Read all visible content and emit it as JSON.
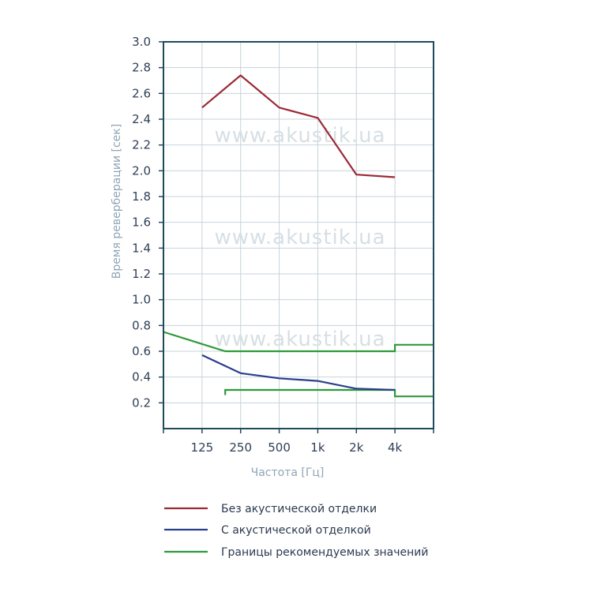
{
  "chart_data": {
    "type": "line",
    "xlabel": "Частота [Гц]",
    "ylabel": "Время реверберации [сек]",
    "ylim": [
      0,
      3.0
    ],
    "yticks": [
      "0.2",
      "0.4",
      "0.6",
      "0.8",
      "1.0",
      "1.2",
      "1.4",
      "1.6",
      "1.8",
      "2.0",
      "2.2",
      "2.4",
      "2.6",
      "2.8",
      "3.0"
    ],
    "x_tick_labels": [
      "125",
      "250",
      "500",
      "1k",
      "2k",
      "4k"
    ],
    "grid": "on",
    "watermark": "www.akustik.ua",
    "series": [
      {
        "name": "Без акустической отделки",
        "color": "#9b2a35",
        "x": [
          "125",
          "250",
          "500",
          "1k",
          "2k",
          "4k"
        ],
        "values": [
          2.49,
          2.74,
          2.49,
          2.41,
          1.97,
          1.95
        ]
      },
      {
        "name": "С акустической отделкой",
        "color": "#2a3f8c",
        "x": [
          "125",
          "250",
          "500",
          "1k",
          "2k",
          "4k"
        ],
        "values": [
          0.57,
          0.43,
          0.39,
          0.37,
          0.31,
          0.3
        ]
      },
      {
        "name": "Границы рекомендуемых значений",
        "color": "#2e9a3a",
        "upper": [
          [
            0,
            0.75
          ],
          [
            1.6,
            0.6
          ],
          [
            6,
            0.6
          ],
          [
            6,
            0.65
          ],
          [
            7,
            0.65
          ]
        ],
        "lower": [
          [
            1.6,
            0.26
          ],
          [
            1.6,
            0.3
          ],
          [
            6,
            0.3
          ],
          [
            6,
            0.25
          ],
          [
            7,
            0.25
          ]
        ]
      }
    ]
  }
}
